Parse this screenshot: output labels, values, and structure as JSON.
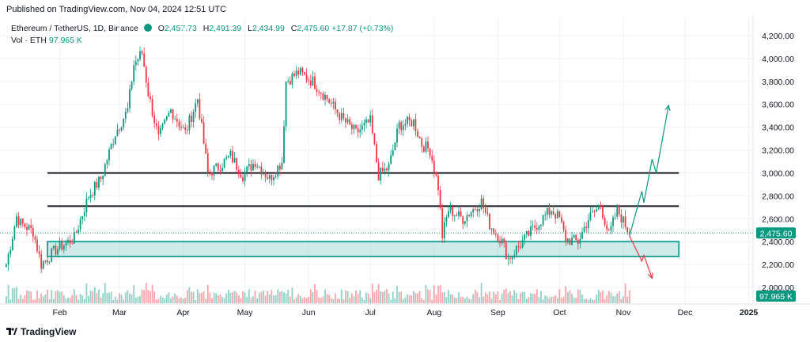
{
  "header": {
    "published": "Published on TradingView.com, Nov 04, 2024 12:51 UTC"
  },
  "legend": {
    "symbol": "Ethereum / TetherUS, 1D, Binance",
    "o_label": "O",
    "o": "2,457.73",
    "h_label": "H",
    "h": "2,491.39",
    "l_label": "L",
    "l": "2,434.99",
    "c_label": "C",
    "c": "2,475.60",
    "change": "+17.87 (+0.73%)",
    "vol_label": "Vol · ETH",
    "vol": "97.965 K"
  },
  "footer": {
    "brand": "TradingView"
  },
  "colors": {
    "up": "#089981",
    "down": "#f23645",
    "zone": "#26a69a",
    "grid": "#f0f3fa"
  },
  "chart_data": {
    "type": "candlestick",
    "y_ticks": [
      "4,200.00",
      "4,000.00",
      "3,800.00",
      "3,600.00",
      "3,400.00",
      "3,200.00",
      "3,000.00",
      "2,800.00",
      "2,600.00",
      "2,400.00",
      "2,200.00",
      "2,000.00"
    ],
    "x_ticks": [
      {
        "label": "Feb",
        "date": "2024-02-01"
      },
      {
        "label": "Mar",
        "date": "2024-03-01"
      },
      {
        "label": "Apr",
        "date": "2024-04-01"
      },
      {
        "label": "May",
        "date": "2024-05-01"
      },
      {
        "label": "Jun",
        "date": "2024-06-01"
      },
      {
        "label": "Jul",
        "date": "2024-07-01"
      },
      {
        "label": "Aug",
        "date": "2024-08-01"
      },
      {
        "label": "Sep",
        "date": "2024-09-01"
      },
      {
        "label": "Oct",
        "date": "2024-10-01"
      },
      {
        "label": "Nov",
        "date": "2024-11-01"
      },
      {
        "label": "Dec",
        "date": "2024-12-01"
      },
      {
        "label": "2025",
        "date": "2025-01-01"
      }
    ],
    "start_date": "2024-01-06",
    "last_close": 2475.6,
    "last_price_label": "2,475.60",
    "last_volume_label": "97.965 K",
    "ylim": [
      1950,
      4270
    ],
    "close_anchors": [
      [
        "2024-01-06",
        2200
      ],
      [
        "2024-01-11",
        2620
      ],
      [
        "2024-01-13",
        2560
      ],
      [
        "2024-01-19",
        2490
      ],
      [
        "2024-01-23",
        2200
      ],
      [
        "2024-01-30",
        2330
      ],
      [
        "2024-02-08",
        2430
      ],
      [
        "2024-02-15",
        2800
      ],
      [
        "2024-02-21",
        2950
      ],
      [
        "2024-02-28",
        3350
      ],
      [
        "2024-03-05",
        3550
      ],
      [
        "2024-03-08",
        3950
      ],
      [
        "2024-03-12",
        4050
      ],
      [
        "2024-03-15",
        3700
      ],
      [
        "2024-03-20",
        3300
      ],
      [
        "2024-03-26",
        3550
      ],
      [
        "2024-04-02",
        3350
      ],
      [
        "2024-04-08",
        3650
      ],
      [
        "2024-04-13",
        3000
      ],
      [
        "2024-04-18",
        3050
      ],
      [
        "2024-04-24",
        3150
      ],
      [
        "2024-04-30",
        2980
      ],
      [
        "2024-05-06",
        3100
      ],
      [
        "2024-05-13",
        2950
      ],
      [
        "2024-05-19",
        3100
      ],
      [
        "2024-05-21",
        3800
      ],
      [
        "2024-05-27",
        3880
      ],
      [
        "2024-06-03",
        3800
      ],
      [
        "2024-06-10",
        3650
      ],
      [
        "2024-06-17",
        3480
      ],
      [
        "2024-06-24",
        3350
      ],
      [
        "2024-07-01",
        3450
      ],
      [
        "2024-07-05",
        2980
      ],
      [
        "2024-07-10",
        3050
      ],
      [
        "2024-07-15",
        3420
      ],
      [
        "2024-07-22",
        3450
      ],
      [
        "2024-07-26",
        3250
      ],
      [
        "2024-07-30",
        3200
      ],
      [
        "2024-08-03",
        2880
      ],
      [
        "2024-08-05",
        2450
      ],
      [
        "2024-08-08",
        2680
      ],
      [
        "2024-08-15",
        2600
      ],
      [
        "2024-08-24",
        2750
      ],
      [
        "2024-08-28",
        2550
      ],
      [
        "2024-09-03",
        2400
      ],
      [
        "2024-09-06",
        2250
      ],
      [
        "2024-09-13",
        2400
      ],
      [
        "2024-09-20",
        2550
      ],
      [
        "2024-09-27",
        2680
      ],
      [
        "2024-10-01",
        2600
      ],
      [
        "2024-10-04",
        2420
      ],
      [
        "2024-10-10",
        2400
      ],
      [
        "2024-10-15",
        2600
      ],
      [
        "2024-10-21",
        2720
      ],
      [
        "2024-10-25",
        2450
      ],
      [
        "2024-10-29",
        2680
      ],
      [
        "2024-11-04",
        2475
      ]
    ],
    "horizontal_lines": [
      {
        "from": "2024-01-26",
        "to": "2024-11-28",
        "value": 3000,
        "color": "#131722"
      },
      {
        "from": "2024-01-26",
        "to": "2024-11-28",
        "value": 2710,
        "color": "#131722"
      }
    ],
    "zone": {
      "from": "2024-01-26",
      "to": "2024-11-28",
      "low": 2270,
      "high": 2400,
      "color": "#26a69a"
    },
    "projection_up": [
      [
        "2024-11-04",
        2450
      ],
      [
        "2024-11-10",
        2840
      ],
      [
        "2024-11-11",
        2740
      ],
      [
        "2024-11-15",
        3120
      ],
      [
        "2024-11-17",
        3000
      ],
      [
        "2024-11-23",
        3590
      ]
    ],
    "projection_down": [
      [
        "2024-11-04",
        2450
      ],
      [
        "2024-11-10",
        2230
      ],
      [
        "2024-11-11",
        2280
      ],
      [
        "2024-11-15",
        2080
      ]
    ]
  }
}
